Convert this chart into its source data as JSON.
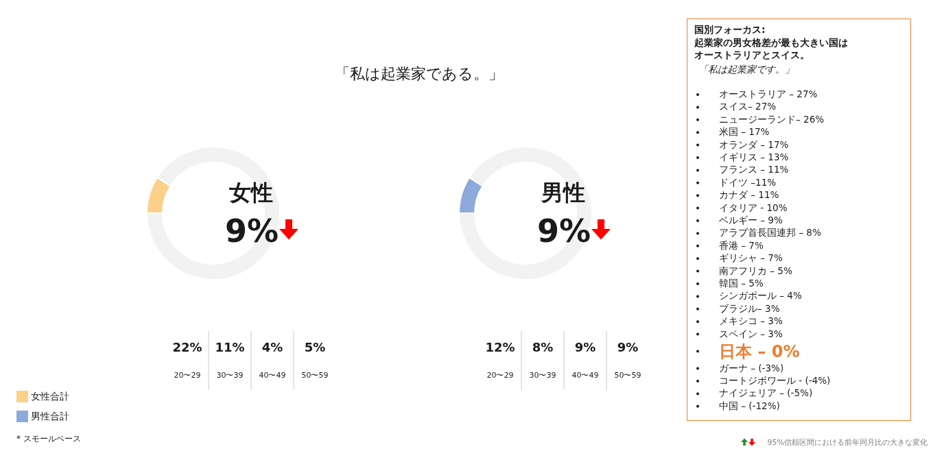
{
  "chart_data": [
    {
      "type": "donut",
      "title": "「私は起業家である。」",
      "categories": [
        "女性合計",
        null
      ],
      "values": [
        9,
        91
      ],
      "colors": [
        "#fdd08a",
        "#f2f2f2"
      ],
      "legend": "bottom left",
      "annotations": [
        "女性",
        "9%",
        "* スモールベース"
      ]
    },
    {
      "type": "other",
      "categories": [
        "20〜29",
        "30〜39",
        "40〜49",
        "50〜59"
      ],
      "value_labels": [
        "22%",
        "11%",
        "4%",
        "5%"
      ]
    },
    {
      "type": "donut",
      "categories": [
        "男性合計",
        null
      ],
      "values": [
        9,
        91
      ],
      "colors": [
        "#8eaadb",
        "#f2f2f2"
      ],
      "legend": "bottom left",
      "annotations": [
        "男性",
        "9%"
      ]
    },
    {
      "type": "other",
      "categories": [
        "20〜29",
        "30〜39",
        "40〜49",
        "50〜59"
      ],
      "value_labels": [
        "12%",
        "8%",
        "9%",
        "9%"
      ]
    },
    {
      "type": "other",
      "title": "国別フォーカス:",
      "subtitle": "起業家の男女格差が最も大きい国はオーストラリアとスイス。",
      "categories": [
        "オーストラリア – 27%",
        "スイス– 27%",
        "ニュージーランド– 26%",
        "米国 – 17%",
        "オランダ – 17%",
        "イギリス – 13%",
        "フランス – 11%",
        "ドイツ –11%",
        "カナダ – 11%",
        "イタリア - 10%",
        "ベルギー – 9%",
        "アラブ首長国連邦 – 8%",
        "香港 – 7%",
        "ギリシャ – 7%",
        "南アフリカ – 5%",
        "韓国 – 5%",
        "シンガポール – 4%",
        "ブラジル– 3%",
        "メキシコ – 3%",
        "スペイン – 3%",
        "日本 – 0%",
        "ガーナ – (-3%)",
        "コートジボワール - (-4%)",
        "ナイジェリア – (-5%)",
        "中国 – (-12%)"
      ],
      "colors": [
        "#1a1a1a",
        "#1a1a1a",
        "#1a1a1a",
        "#1a1a1a",
        "#1a1a1a",
        "#1a1a1a",
        "#1a1a1a",
        "#1a1a1a",
        "#1a1a1a",
        "#1a1a1a",
        "#1a1a1a",
        "#1a1a1a",
        "#1a1a1a",
        "#1a1a1a",
        "#1a1a1a",
        "#1a1a1a",
        "#1a1a1a",
        "#1a1a1a",
        "#1a1a1a",
        "#1a1a1a",
        "#ed7d31",
        "#1a1a1a",
        "#1a1a1a",
        "#1a1a1a",
        "#1a1a1a"
      ],
      "annotations": [
        "「私は起業家です。」",
        "95%信頼区間における前年同月比の大きな変化"
      ]
    }
  ]
}
